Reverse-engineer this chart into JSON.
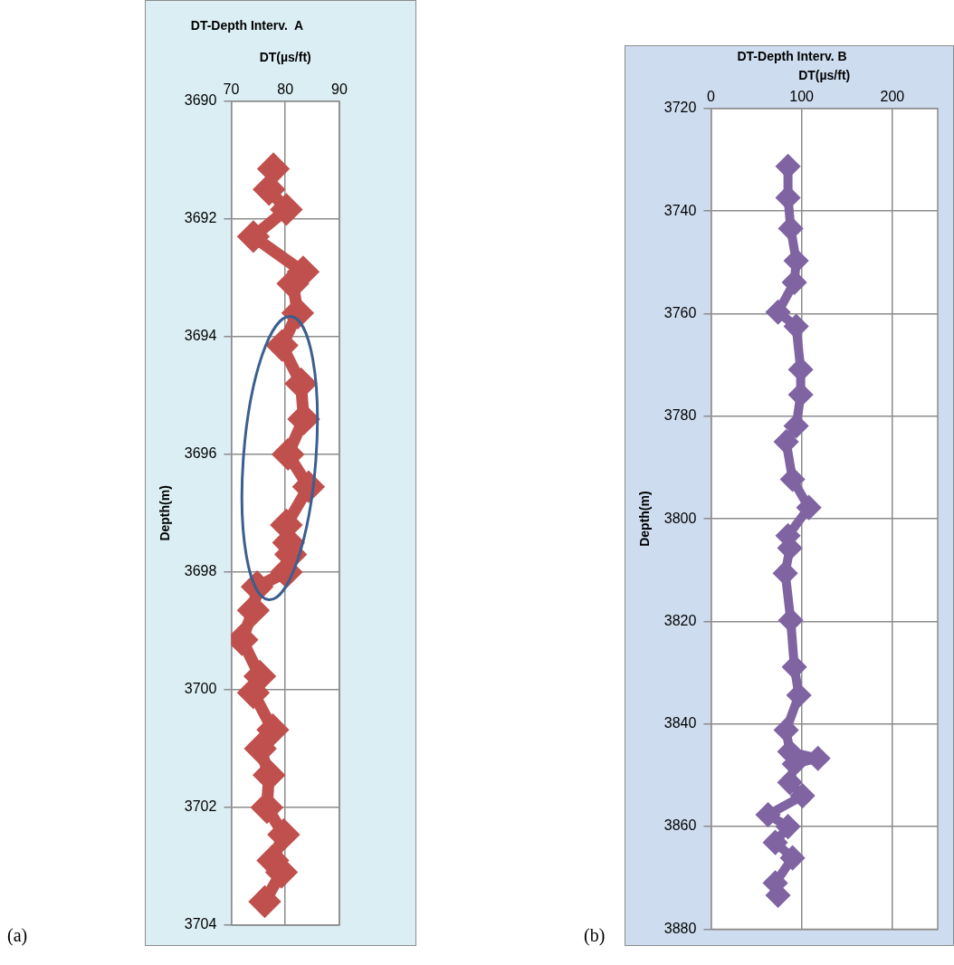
{
  "chart_data": [
    {
      "type": "line",
      "title": "DT-Depth Interv.  A",
      "xlabel": "DT(µs/ft)",
      "ylabel": "Depth(m)",
      "annotations": [
        "(a)"
      ],
      "series": [
        {
          "color": "#c0504d",
          "x": [
            77.8,
            77.0,
            80.2,
            74.1,
            83.3,
            81.4,
            82.3,
            79.4,
            82.9,
            83.4,
            80.5,
            84.3,
            80.2,
            80.6,
            81.0,
            80.2,
            74.8,
            74.1,
            72.0,
            75.3,
            74.1,
            77.7,
            75.4,
            77.0,
            76.6,
            79.7,
            77.7,
            79.3,
            76.2
          ],
          "values": [
            3691.15,
            3691.5,
            3691.84,
            3692.3,
            3692.9,
            3693.1,
            3693.6,
            3694.15,
            3694.8,
            3695.4,
            3696.0,
            3696.55,
            3697.2,
            3697.5,
            3697.7,
            3698.0,
            3698.25,
            3698.65,
            3699.15,
            3699.77,
            3700.05,
            3700.68,
            3701.0,
            3701.45,
            3702.0,
            3702.46,
            3702.9,
            3703.1,
            3703.6
          ]
        }
      ],
      "xlim": [
        70,
        90
      ],
      "xticks": [
        70,
        80,
        90
      ],
      "ylim": [
        3704,
        3690
      ],
      "yticks": [
        3690,
        3692,
        3694,
        3696,
        3698,
        3700,
        3702,
        3704
      ],
      "grid": true,
      "marker": "diamond"
    },
    {
      "type": "line",
      "title": "DT-Depth Interv. B",
      "xlabel": "DT(µs/ft)",
      "ylabel": "Depth(m)",
      "annotations": [
        "(b)"
      ],
      "series": [
        {
          "color": "#8064a2",
          "x": [
            85,
            85,
            88,
            94,
            92,
            74,
            94,
            99,
            99,
            94,
            83,
            90,
            108,
            85,
            87,
            82,
            88,
            92,
            97,
            83,
            87,
            118,
            92,
            87,
            101,
            63,
            85,
            71,
            90,
            71,
            74
          ],
          "values": [
            3731.3,
            3737.4,
            3743.4,
            3749.7,
            3753.9,
            3759.7,
            3762.5,
            3770.9,
            3775.8,
            3781.9,
            3785,
            3792.3,
            3797.8,
            3803.3,
            3805.7,
            3810.6,
            3819.8,
            3828.9,
            3834.4,
            3841.2,
            3845.4,
            3846.7,
            3847.8,
            3851.4,
            3854,
            3857.7,
            3860,
            3863.1,
            3866.1,
            3871,
            3873.4
          ]
        }
      ],
      "xlim": [
        0,
        250
      ],
      "xticks": [
        0,
        100,
        200
      ],
      "ylim": [
        3880,
        3720
      ],
      "yticks": [
        3720,
        3740,
        3760,
        3780,
        3800,
        3820,
        3840,
        3860,
        3880
      ],
      "grid": true,
      "marker": "diamond"
    }
  ]
}
